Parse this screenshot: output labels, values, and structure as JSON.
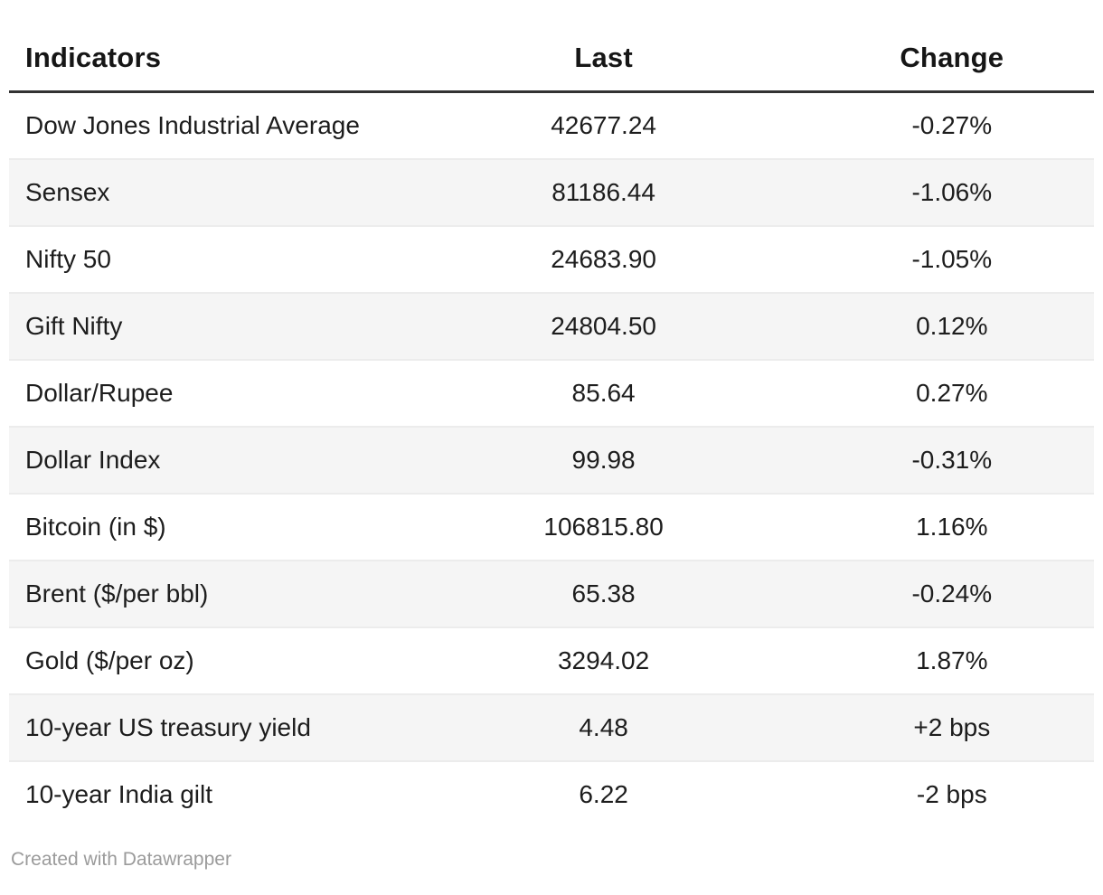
{
  "chart_data": {
    "type": "table",
    "title": "",
    "columns": [
      "Indicators",
      "Last",
      "Change"
    ],
    "rows": [
      [
        "Dow Jones Industrial Average",
        "42677.24",
        "-0.27%"
      ],
      [
        "Sensex",
        "81186.44",
        "-1.06%"
      ],
      [
        "Nifty 50",
        "24683.90",
        "-1.05%"
      ],
      [
        "Gift Nifty",
        "24804.50",
        "0.12%"
      ],
      [
        "Dollar/Rupee",
        "85.64",
        "0.27%"
      ],
      [
        "Dollar Index",
        "99.98",
        "-0.31%"
      ],
      [
        "Bitcoin (in $)",
        "106815.80",
        "1.16%"
      ],
      [
        "Brent ($/per bbl)",
        "65.38",
        "-0.24%"
      ],
      [
        "Gold ($/per oz)",
        "3294.02",
        "1.87%"
      ],
      [
        "10-year US treasury yield",
        "4.48",
        "+2 bps"
      ],
      [
        "10-year India gilt",
        "6.22",
        "-2 bps"
      ]
    ],
    "layout": {
      "zebra_striping": true,
      "numeric_columns_align": "center",
      "label_column_align": "left"
    }
  },
  "footer": {
    "attribution": "Created with Datawrapper"
  },
  "colors": {
    "text": "#1d1d1d",
    "header_text": "#161616",
    "header_border": "#333333",
    "zebra_stripe": "#f5f5f5",
    "row_separator": "#ececec",
    "muted_text": "#9b9b9b",
    "background": "#ffffff"
  }
}
